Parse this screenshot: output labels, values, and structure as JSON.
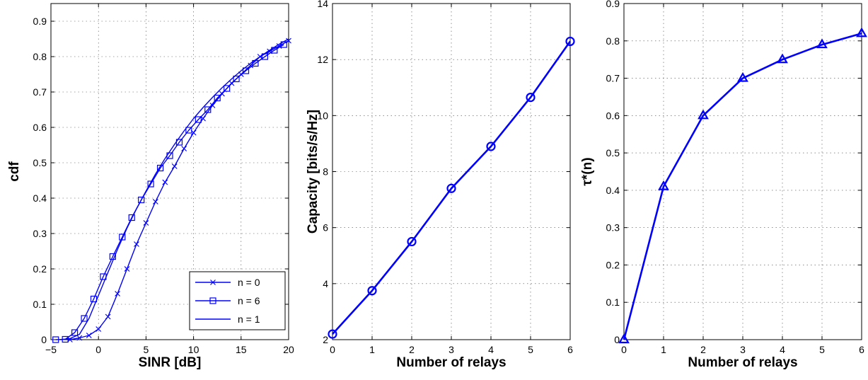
{
  "chart_data": [
    {
      "type": "line",
      "xlabel": "SINR [dB]",
      "ylabel": "cdf",
      "xlim": [
        -5,
        20
      ],
      "ylim": [
        0,
        0.95
      ],
      "xticks": [
        -5,
        0,
        5,
        10,
        15,
        20
      ],
      "yticks": [
        0,
        0.1,
        0.2,
        0.3,
        0.4,
        0.5,
        0.6,
        0.7,
        0.8,
        0.9
      ],
      "xtick_labels": [
        "−5",
        "0",
        "5",
        "10",
        "15",
        "20"
      ],
      "ytick_labels": [
        "0",
        "0.1",
        "0.2",
        "0.3",
        "0.4",
        "0.5",
        "0.6",
        "0.7",
        "0.8",
        "0.9"
      ],
      "grid": true,
      "legend_position": "bottom-right",
      "series": [
        {
          "name": "n = 0",
          "marker": "x",
          "color": "#0000ff",
          "x": [
            -3,
            -2,
            -1,
            0,
            1,
            2,
            3,
            4,
            5,
            6,
            7,
            8,
            9,
            10,
            11,
            12,
            13,
            14,
            15,
            16,
            17,
            18,
            19,
            20
          ],
          "y": [
            0,
            0.005,
            0.012,
            0.03,
            0.065,
            0.13,
            0.2,
            0.27,
            0.33,
            0.39,
            0.445,
            0.49,
            0.54,
            0.585,
            0.625,
            0.662,
            0.695,
            0.725,
            0.75,
            0.775,
            0.8,
            0.815,
            0.83,
            0.845
          ]
        },
        {
          "name": "n = 6",
          "marker": "square",
          "color": "#0000ff",
          "x": [
            -4.5,
            -3.5,
            -2.5,
            -1.5,
            -0.5,
            0.5,
            1.5,
            2.5,
            3.5,
            4.5,
            5.5,
            6.5,
            7.5,
            8.5,
            9.5,
            10.5,
            11.5,
            12.5,
            13.5,
            14.5,
            15.5,
            16.5,
            17.5,
            18.5,
            19.5
          ],
          "y": [
            0,
            0.001,
            0.02,
            0.06,
            0.115,
            0.178,
            0.235,
            0.29,
            0.345,
            0.395,
            0.44,
            0.485,
            0.52,
            0.558,
            0.592,
            0.622,
            0.65,
            0.683,
            0.71,
            0.737,
            0.76,
            0.781,
            0.8,
            0.818,
            0.834
          ]
        },
        {
          "name": "n = 1",
          "marker": "none",
          "color": "#0000ff",
          "x": [
            -4,
            -3,
            -2,
            -1,
            0,
            1,
            2,
            3,
            4,
            5,
            6,
            7,
            8,
            9,
            10,
            11,
            12,
            13,
            14,
            15,
            16,
            17,
            18,
            19,
            20
          ],
          "y": [
            0,
            0.003,
            0.015,
            0.06,
            0.125,
            0.19,
            0.255,
            0.315,
            0.37,
            0.42,
            0.468,
            0.512,
            0.552,
            0.59,
            0.625,
            0.656,
            0.685,
            0.712,
            0.737,
            0.76,
            0.781,
            0.8,
            0.818,
            0.835,
            0.85
          ]
        }
      ]
    },
    {
      "type": "line",
      "xlabel": "Number of relays",
      "ylabel": "Capacity [bits/s/Hz]",
      "xlim": [
        0,
        6
      ],
      "ylim": [
        2,
        14
      ],
      "xticks": [
        0,
        1,
        2,
        3,
        4,
        5,
        6
      ],
      "yticks": [
        2,
        4,
        6,
        8,
        10,
        12,
        14
      ],
      "xtick_labels": [
        "0",
        "1",
        "2",
        "3",
        "4",
        "5",
        "6"
      ],
      "ytick_labels": [
        "2",
        "4",
        "6",
        "8",
        "10",
        "12",
        "14"
      ],
      "grid": true,
      "series": [
        {
          "marker": "circle",
          "color": "#0000ff",
          "x": [
            0,
            1,
            2,
            3,
            4,
            5,
            6
          ],
          "y": [
            2.2,
            3.75,
            5.5,
            7.4,
            8.9,
            10.65,
            12.65
          ]
        }
      ]
    },
    {
      "type": "line",
      "xlabel": "Number of relays",
      "ylabel": "τ*(n)",
      "xlim": [
        0,
        6
      ],
      "ylim": [
        0,
        0.9
      ],
      "xticks": [
        0,
        1,
        2,
        3,
        4,
        5,
        6
      ],
      "yticks": [
        0,
        0.1,
        0.2,
        0.3,
        0.4,
        0.5,
        0.6,
        0.7,
        0.8,
        0.9
      ],
      "xtick_labels": [
        "0",
        "1",
        "2",
        "3",
        "4",
        "5",
        "6"
      ],
      "ytick_labels": [
        "0",
        "0.1",
        "0.2",
        "0.3",
        "0.4",
        "0.5",
        "0.6",
        "0.7",
        "0.8",
        "0.9"
      ],
      "grid": true,
      "series": [
        {
          "marker": "triangle",
          "color": "#0000ff",
          "x": [
            0,
            1,
            2,
            3,
            4,
            5,
            6
          ],
          "y": [
            0,
            0.41,
            0.6,
            0.7,
            0.75,
            0.79,
            0.82
          ]
        }
      ]
    }
  ]
}
